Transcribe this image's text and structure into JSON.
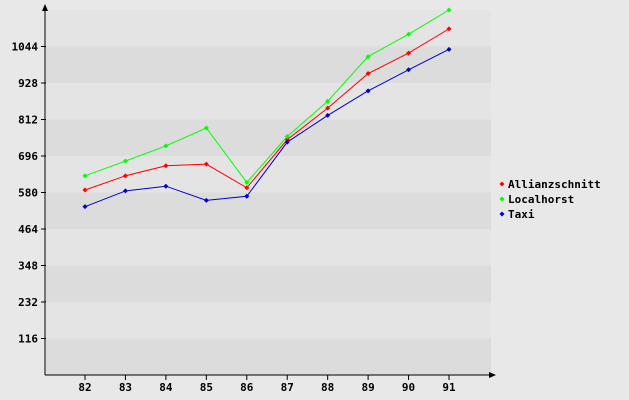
{
  "chart_data": {
    "type": "line",
    "title": "",
    "xlabel": "",
    "ylabel": "",
    "categories": [
      "82",
      "83",
      "84",
      "85",
      "86",
      "87",
      "88",
      "89",
      "90",
      "91"
    ],
    "y_ticks": [
      116,
      232,
      348,
      464,
      580,
      696,
      812,
      928,
      1044
    ],
    "ylim": [
      0,
      1160
    ],
    "grid": true,
    "legend_position": "right",
    "series": [
      {
        "name": "Allianzschnitt",
        "color": "#ff0000",
        "values": [
          588,
          633,
          665,
          670,
          595,
          748,
          848,
          958,
          1023,
          1100
        ]
      },
      {
        "name": "Localhorst",
        "color": "#00ff00",
        "values": [
          633,
          680,
          728,
          785,
          612,
          758,
          870,
          1012,
          1083,
          1160
        ]
      },
      {
        "name": "Taxi",
        "color": "#0000cc",
        "values": [
          535,
          585,
          600,
          555,
          568,
          740,
          825,
          903,
          970,
          1035
        ]
      }
    ]
  }
}
